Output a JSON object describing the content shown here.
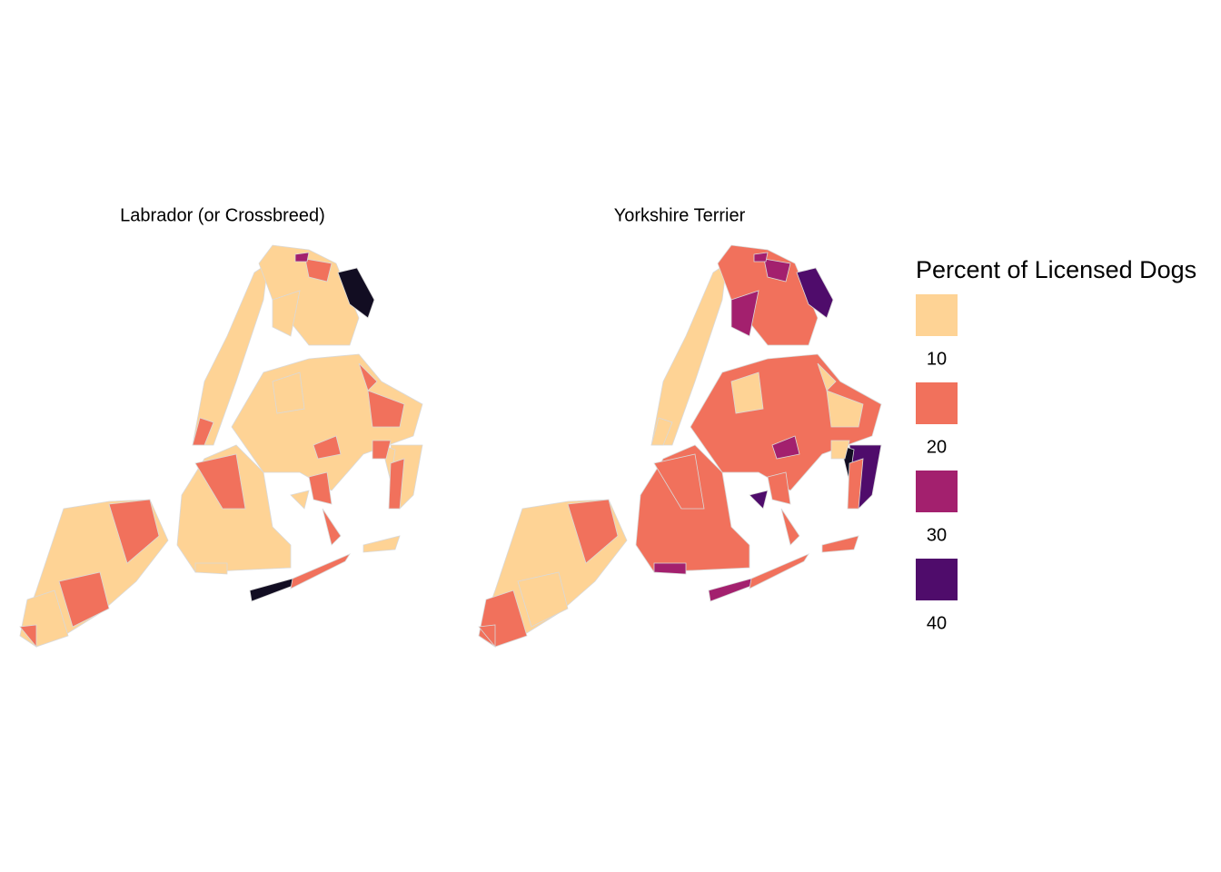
{
  "panels": [
    {
      "title": "Labrador (or Crossbreed)"
    },
    {
      "title": "Yorkshire Terrier"
    }
  ],
  "legend": {
    "title": "Percent of Licensed Dogs",
    "items": [
      {
        "label": "10",
        "color": "#fed395"
      },
      {
        "label": "20",
        "color": "#f1715c"
      },
      {
        "label": "30",
        "color": "#a3206e"
      },
      {
        "label": "40",
        "color": "#4f0c6b"
      }
    ]
  }
}
